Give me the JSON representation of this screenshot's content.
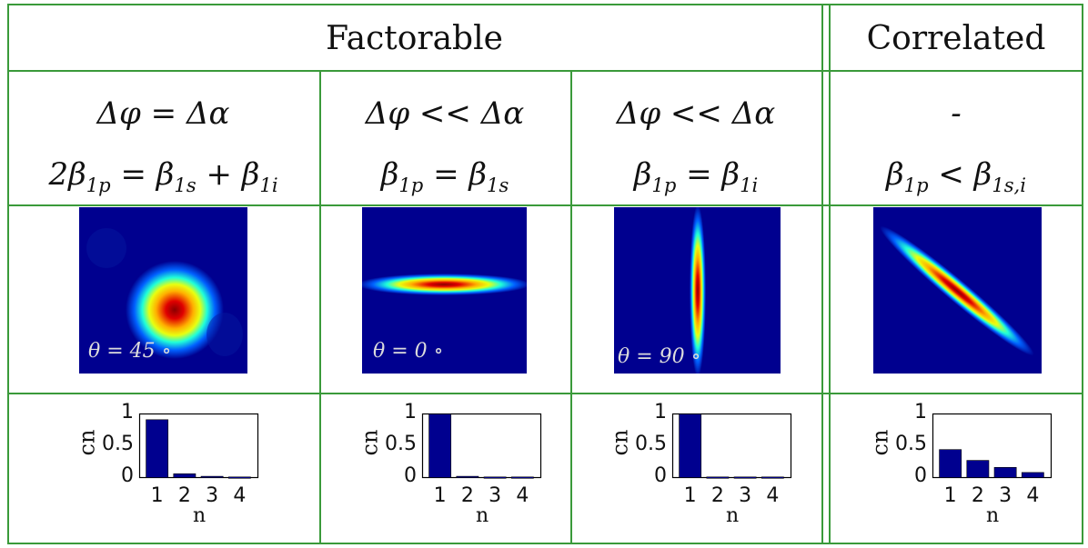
{
  "headers": {
    "factorable": "Factorable",
    "correlated": "Correlated"
  },
  "conditions": [
    {
      "line1": "Δφ = Δα",
      "line2": "2β1p = β1s + β1i"
    },
    {
      "line1": "Δφ << Δα",
      "line2": "β1p = β1s"
    },
    {
      "line1": "Δφ << Δα",
      "line2": "β1p = β1i"
    },
    {
      "line1": "-",
      "line2": "β1p < β1s,i"
    }
  ],
  "images": [
    {
      "theta_label": "θ = 45 ∘",
      "shape": "circle"
    },
    {
      "theta_label": "θ = 0 ∘",
      "shape": "horizontal"
    },
    {
      "theta_label": "θ = 90 ∘",
      "shape": "vertical"
    },
    {
      "theta_label": "",
      "shape": "diagonal"
    }
  ],
  "chart_data": [
    {
      "type": "bar",
      "categories": [
        "1",
        "2",
        "3",
        "4"
      ],
      "values": [
        0.91,
        0.06,
        0.02,
        0.01
      ],
      "xlabel": "n",
      "ylabel": "cn",
      "ylim": [
        0,
        1
      ],
      "yticks": [
        "0",
        "0.5",
        "1"
      ]
    },
    {
      "type": "bar",
      "categories": [
        "1",
        "2",
        "3",
        "4"
      ],
      "values": [
        1.0,
        0.02,
        0.01,
        0.01
      ],
      "xlabel": "n",
      "ylabel": "cn",
      "ylim": [
        0,
        1
      ],
      "yticks": [
        "0",
        "0.5",
        "1"
      ]
    },
    {
      "type": "bar",
      "categories": [
        "1",
        "2",
        "3",
        "4"
      ],
      "values": [
        1.0,
        0.01,
        0.01,
        0.01
      ],
      "xlabel": "n",
      "ylabel": "cn",
      "ylim": [
        0,
        1
      ],
      "yticks": [
        "0",
        "0.5",
        "1"
      ]
    },
    {
      "type": "bar",
      "categories": [
        "1",
        "2",
        "3",
        "4"
      ],
      "values": [
        0.44,
        0.27,
        0.16,
        0.08
      ],
      "xlabel": "n",
      "ylabel": "cn",
      "ylim": [
        0,
        1
      ],
      "yticks": [
        "0",
        "0.5",
        "1"
      ]
    }
  ],
  "colors": {
    "grid": "#3a9a3a",
    "bar": "#00008f",
    "plot_bg": "#00008f"
  }
}
